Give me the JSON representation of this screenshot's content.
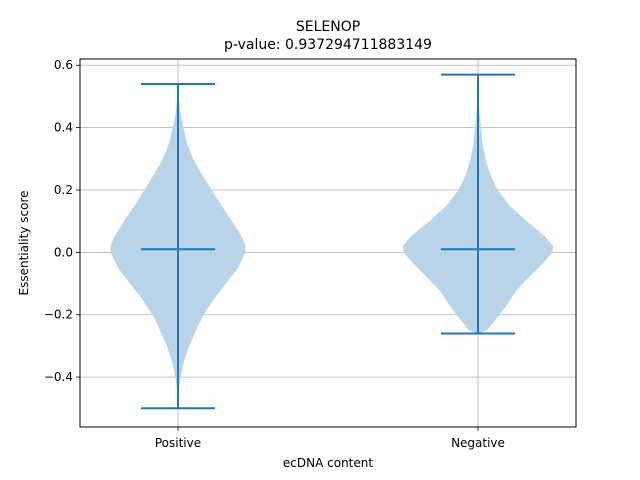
{
  "chart_data": {
    "type": "violin",
    "title": "SELENOP",
    "subtitle": "p-value: 0.937294711883149",
    "xlabel": "ecDNA content",
    "ylabel": "Essentiality score",
    "categories": [
      "Positive",
      "Negative"
    ],
    "ylim": [
      -0.56,
      0.62
    ],
    "yticks": [
      -0.4,
      -0.2,
      0.0,
      0.2,
      0.4,
      0.6
    ],
    "ytick_labels": [
      "−0.4",
      "−0.2",
      "0.0",
      "0.2",
      "0.4",
      "0.6"
    ],
    "grid": true,
    "fill_color": "#b9d4e8",
    "line_color": "#1f77b4",
    "violins": [
      {
        "name": "Positive",
        "min": -0.5,
        "max": 0.54,
        "mean": 0.01,
        "profile": [
          [
            -0.5,
            0.0
          ],
          [
            -0.48,
            0.004
          ],
          [
            -0.45,
            0.012
          ],
          [
            -0.4,
            0.035
          ],
          [
            -0.35,
            0.08
          ],
          [
            -0.3,
            0.15
          ],
          [
            -0.25,
            0.24
          ],
          [
            -0.2,
            0.34
          ],
          [
            -0.15,
            0.48
          ],
          [
            -0.1,
            0.64
          ],
          [
            -0.05,
            0.8
          ],
          [
            0.0,
            0.9
          ],
          [
            0.02,
            0.9
          ],
          [
            0.05,
            0.85
          ],
          [
            0.1,
            0.72
          ],
          [
            0.15,
            0.58
          ],
          [
            0.2,
            0.45
          ],
          [
            0.25,
            0.32
          ],
          [
            0.3,
            0.2
          ],
          [
            0.35,
            0.12
          ],
          [
            0.4,
            0.07
          ],
          [
            0.45,
            0.03
          ],
          [
            0.5,
            0.01
          ],
          [
            0.54,
            0.0
          ]
        ]
      },
      {
        "name": "Negative",
        "min": -0.26,
        "max": 0.57,
        "mean": 0.01,
        "profile": [
          [
            -0.26,
            0.0
          ],
          [
            -0.25,
            0.12
          ],
          [
            -0.22,
            0.22
          ],
          [
            -0.18,
            0.35
          ],
          [
            -0.12,
            0.52
          ],
          [
            -0.08,
            0.68
          ],
          [
            -0.04,
            0.85
          ],
          [
            0.0,
            0.99
          ],
          [
            0.02,
            1.0
          ],
          [
            0.05,
            0.9
          ],
          [
            0.1,
            0.65
          ],
          [
            0.15,
            0.42
          ],
          [
            0.2,
            0.26
          ],
          [
            0.25,
            0.16
          ],
          [
            0.3,
            0.1
          ],
          [
            0.35,
            0.06
          ],
          [
            0.4,
            0.04
          ],
          [
            0.45,
            0.02
          ],
          [
            0.5,
            0.01
          ],
          [
            0.57,
            0.0
          ]
        ]
      }
    ]
  }
}
